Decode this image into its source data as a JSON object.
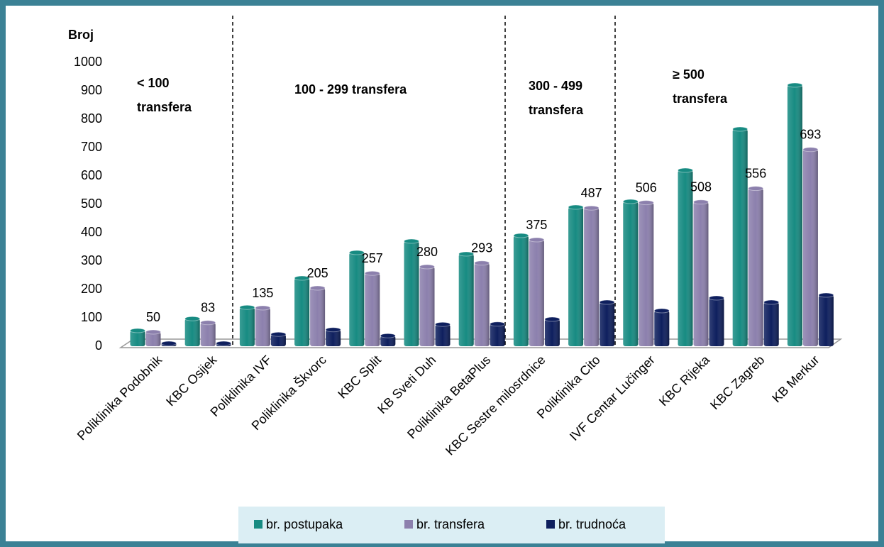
{
  "chart_data": {
    "type": "bar3d",
    "y_label": "Broj",
    "categories": [
      "Poliklinika Podobnik",
      "KBC Osijek",
      "Poliklinika IVF",
      "Poliklinika Škvorc",
      "KBC Split",
      "KB Sveti Duh",
      "Poliklinika BetaPlus",
      "KBC Sestre milosrdnice",
      "Poliklinika Cito",
      "IVF Centar Lučinger",
      "KBC Rijeka",
      "KBC Zagreb",
      "KB Merkur"
    ],
    "series": [
      {
        "name": "br. postupaka",
        "color": "#178b82",
        "values": [
          55,
          97,
          137,
          240,
          330,
          370,
          325,
          390,
          490,
          510,
          620,
          765,
          920
        ]
      },
      {
        "name": "br. transfera",
        "color": "#8c80ad",
        "values": [
          50,
          83,
          135,
          205,
          257,
          280,
          293,
          375,
          487,
          506,
          508,
          556,
          693
        ],
        "data_labels": true
      },
      {
        "name": "br. trudnoća",
        "color": "#0e1f5e",
        "values": [
          10,
          10,
          42,
          58,
          37,
          77,
          78,
          95,
          155,
          125,
          170,
          155,
          180
        ]
      }
    ],
    "annotations": [
      {
        "lines": [
          "< 100",
          "transfera"
        ]
      },
      {
        "lines": [
          "100 - 299  transfera"
        ]
      },
      {
        "lines": [
          "300 - 499",
          "transfera"
        ]
      },
      {
        "lines": [
          "≥ 500",
          "transfera"
        ]
      }
    ],
    "ylim": [
      0,
      1000
    ],
    "yticks": [
      0,
      100,
      200,
      300,
      400,
      500,
      600,
      700,
      800,
      900,
      1000
    ],
    "grid": false,
    "legend": "bottom"
  }
}
